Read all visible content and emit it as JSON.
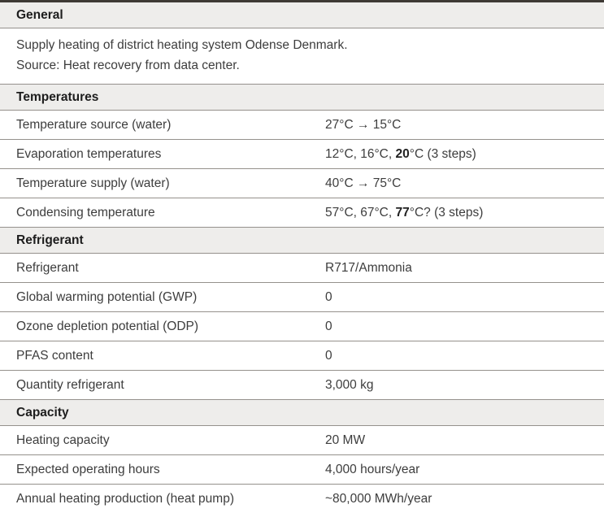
{
  "theme": {
    "header_bg": "#eeedeb",
    "divider": "#95918c",
    "top_border": "#3e3a35",
    "text": "#3d3d3d",
    "heading_text": "#1d1d1d",
    "background": "#ffffff"
  },
  "table": {
    "sections": [
      {
        "title": "General",
        "description_lines": [
          "Supply heating of district heating system Odense Denmark.",
          "Source: Heat recovery from data center."
        ],
        "rows": []
      },
      {
        "title": "Temperatures",
        "rows": [
          {
            "label": "Temperature source (water)",
            "value_segments": [
              {
                "text": "27°C → 15°C",
                "bold": false
              }
            ]
          },
          {
            "label": "Evaporation temperatures",
            "value_segments": [
              {
                "text": "12°C, 16°C, ",
                "bold": false
              },
              {
                "text": "20",
                "bold": true
              },
              {
                "text": "°C (3 steps)",
                "bold": false
              }
            ]
          },
          {
            "label": "Temperature supply (water)",
            "value_segments": [
              {
                "text": "40°C → 75°C",
                "bold": false
              }
            ]
          },
          {
            "label": "Condensing temperature",
            "value_segments": [
              {
                "text": "57°C, 67°C, ",
                "bold": false
              },
              {
                "text": "77",
                "bold": true
              },
              {
                "text": "°C? (3 steps)",
                "bold": false
              }
            ]
          }
        ]
      },
      {
        "title": "Refrigerant",
        "rows": [
          {
            "label": "Refrigerant",
            "value_segments": [
              {
                "text": "R717/Ammonia",
                "bold": false
              }
            ]
          },
          {
            "label": "Global warming potential (GWP)",
            "value_segments": [
              {
                "text": "0",
                "bold": false
              }
            ]
          },
          {
            "label": "Ozone depletion potential (ODP)",
            "value_segments": [
              {
                "text": "0",
                "bold": false
              }
            ]
          },
          {
            "label": "PFAS content",
            "value_segments": [
              {
                "text": "0",
                "bold": false
              }
            ]
          },
          {
            "label": "Quantity refrigerant",
            "value_segments": [
              {
                "text": "3,000 kg",
                "bold": false
              }
            ]
          }
        ]
      },
      {
        "title": "Capacity",
        "rows": [
          {
            "label": "Heating capacity",
            "value_segments": [
              {
                "text": "20 MW",
                "bold": false
              }
            ]
          },
          {
            "label": "Expected operating hours",
            "value_segments": [
              {
                "text": "4,000 hours/year",
                "bold": false
              }
            ]
          },
          {
            "label": "Annual heating production (heat pump)",
            "value_segments": [
              {
                "text": "~80,000 MWh/year",
                "bold": false
              }
            ]
          }
        ]
      }
    ]
  }
}
